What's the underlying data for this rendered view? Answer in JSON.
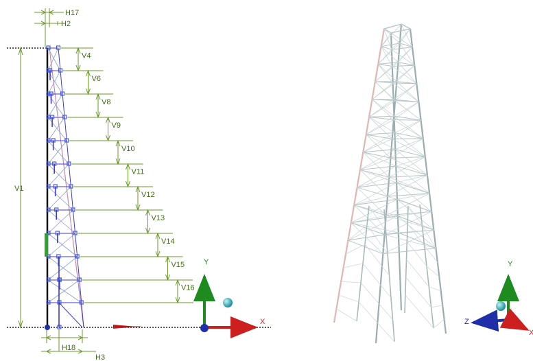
{
  "left_view": {
    "vertical_dims": [
      "V4",
      "V6",
      "V8",
      "V9",
      "V10",
      "V11",
      "V12",
      "V13",
      "V14",
      "V15",
      "V16"
    ],
    "overall_height_label": "V1",
    "top_dims": [
      "H17",
      "H2"
    ],
    "bottom_dims": [
      "H18",
      "H3"
    ],
    "axes": {
      "y_label": "Y",
      "x_label": "X"
    }
  },
  "right_view": {
    "axes": {
      "y_label": "Y",
      "z_label": "Z",
      "x_label": "X"
    }
  },
  "colors": {
    "dimension": "#6a9a2a",
    "dimension_text": "#3f6e12",
    "frame": "#3b3bd6",
    "node": "#4a5cd9",
    "axis_x": "#cc1f1f",
    "axis_y": "#1f8a1f",
    "axis_z": "#1f2fa8",
    "sphere": "#2fb8c4",
    "tower": "#9aaeb0",
    "tower_leg": "#e0b7b0"
  }
}
